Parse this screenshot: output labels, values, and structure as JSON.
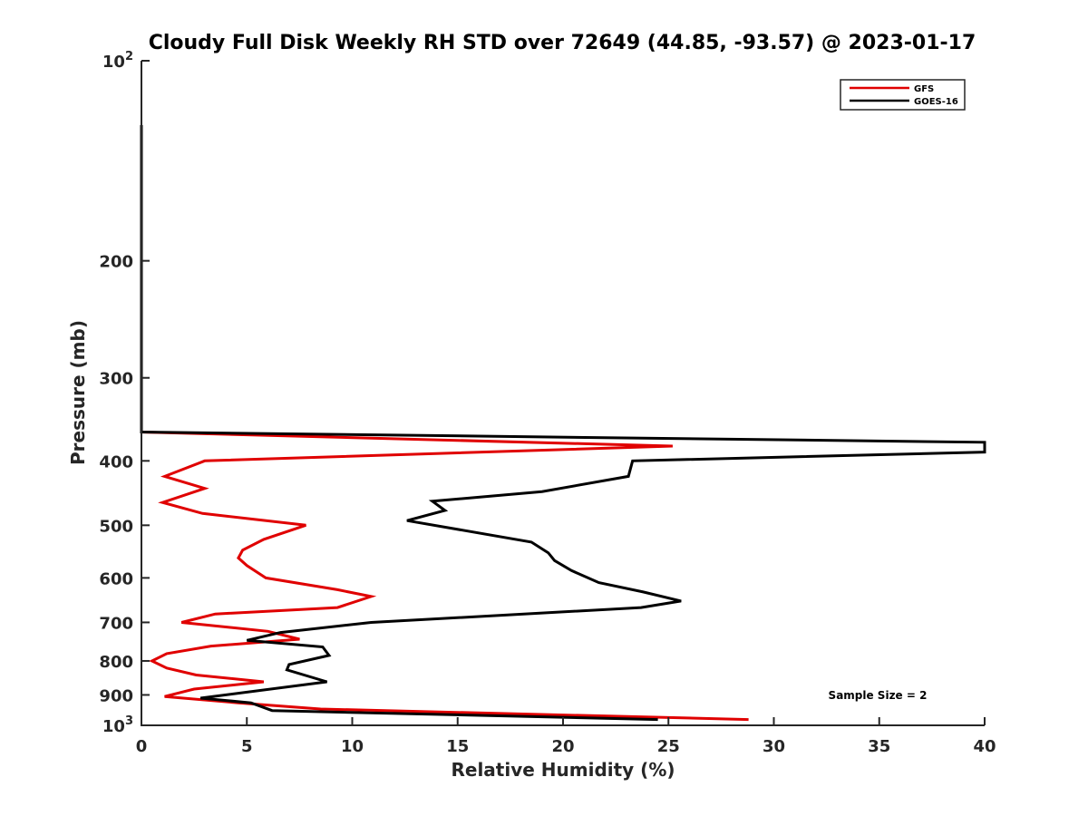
{
  "chart_data": {
    "type": "line",
    "title": "Cloudy Full Disk Weekly RH STD over 72649 (44.85, -93.57) @ 2023-01-17",
    "xlabel": "Relative Humidity (%)",
    "ylabel": "Pressure (mb)",
    "xlim": [
      0,
      40
    ],
    "ylim": [
      100,
      1000
    ],
    "y_scale": "log",
    "y_reversed": true,
    "grid": false,
    "x_ticks": [
      0,
      5,
      10,
      15,
      20,
      25,
      30,
      35,
      40
    ],
    "x_tick_labels": [
      "0",
      "5",
      "10",
      "15",
      "20",
      "25",
      "30",
      "35",
      "40"
    ],
    "y_ticks": [
      100,
      200,
      300,
      400,
      500,
      600,
      700,
      800,
      900,
      1000
    ],
    "y_tick_labels": [
      {
        "base": "10",
        "exp": "2"
      },
      {
        "base": "200",
        "exp": ""
      },
      {
        "base": "300",
        "exp": ""
      },
      {
        "base": "400",
        "exp": ""
      },
      {
        "base": "500",
        "exp": ""
      },
      {
        "base": "600",
        "exp": ""
      },
      {
        "base": "700",
        "exp": ""
      },
      {
        "base": "800",
        "exp": ""
      },
      {
        "base": "900",
        "exp": ""
      },
      {
        "base": "10",
        "exp": "3"
      }
    ],
    "legend_position": "top-right",
    "annotation": "Sample Size = 2",
    "series": [
      {
        "name": "GFS",
        "color": "#e00000",
        "points": [
          [
            0,
            125
          ],
          [
            0,
            200
          ],
          [
            0,
            300
          ],
          [
            0,
            362
          ],
          [
            25.2,
            380
          ],
          [
            3.0,
            400
          ],
          [
            1.1,
            422
          ],
          [
            3.0,
            440
          ],
          [
            1.0,
            462
          ],
          [
            2.9,
            480
          ],
          [
            7.8,
            500
          ],
          [
            5.8,
            525
          ],
          [
            4.8,
            545
          ],
          [
            4.6,
            560
          ],
          [
            5.0,
            575
          ],
          [
            5.9,
            600
          ],
          [
            9.3,
            625
          ],
          [
            10.9,
            640
          ],
          [
            9.3,
            665
          ],
          [
            3.5,
            680
          ],
          [
            1.9,
            700
          ],
          [
            6.0,
            722
          ],
          [
            7.5,
            742
          ],
          [
            3.3,
            760
          ],
          [
            1.2,
            780
          ],
          [
            0.5,
            800
          ],
          [
            1.2,
            820
          ],
          [
            2.6,
            840
          ],
          [
            5.8,
            860
          ],
          [
            2.5,
            882
          ],
          [
            1.1,
            905
          ],
          [
            4.6,
            925
          ],
          [
            8.5,
            945
          ],
          [
            28.8,
            980
          ]
        ]
      },
      {
        "name": "GOES-16",
        "color": "#000000",
        "points": [
          [
            0,
            125
          ],
          [
            0,
            200
          ],
          [
            0,
            300
          ],
          [
            0,
            362
          ],
          [
            40,
            375
          ],
          [
            40,
            388
          ],
          [
            23.3,
            400
          ],
          [
            23.1,
            422
          ],
          [
            19.0,
            445
          ],
          [
            13.8,
            460
          ],
          [
            14.4,
            475
          ],
          [
            12.6,
            492
          ],
          [
            18.5,
            530
          ],
          [
            19.3,
            550
          ],
          [
            19.6,
            565
          ],
          [
            20.4,
            585
          ],
          [
            21.7,
            610
          ],
          [
            23.8,
            630
          ],
          [
            25.6,
            650
          ],
          [
            23.7,
            665
          ],
          [
            10.9,
            700
          ],
          [
            6.6,
            725
          ],
          [
            5.0,
            745
          ],
          [
            8.6,
            762
          ],
          [
            8.9,
            785
          ],
          [
            7.0,
            810
          ],
          [
            6.9,
            825
          ],
          [
            8.8,
            860
          ],
          [
            2.8,
            910
          ],
          [
            5.2,
            925
          ],
          [
            6.2,
            950
          ],
          [
            24.5,
            980
          ]
        ]
      }
    ]
  }
}
